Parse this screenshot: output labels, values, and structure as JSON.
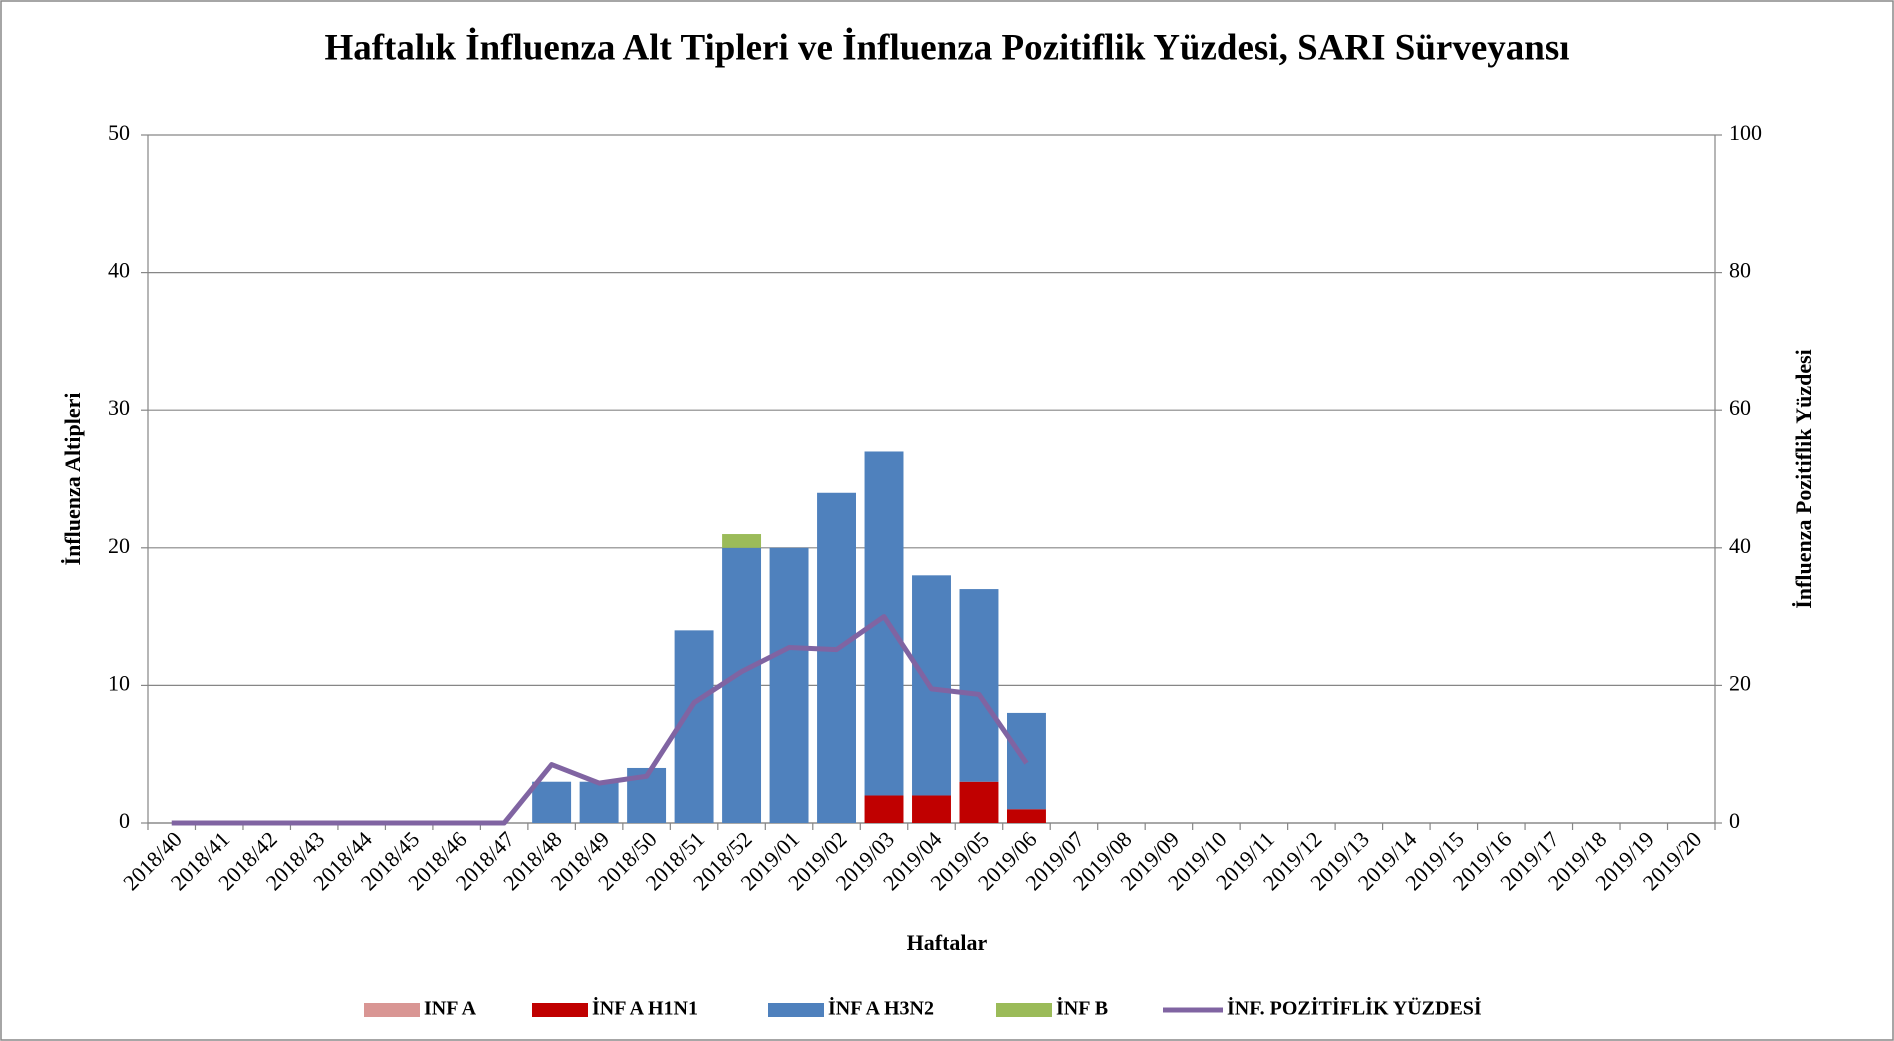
{
  "chart_data": {
    "type": "bar",
    "title": "Haftalık İnfluenza Alt Tipleri ve İnfluenza Pozitiflik Yüzdesi, SARI Sürveyansı",
    "x_label": "Haftalar",
    "y_label": "İnfluenza Altipleri",
    "y2_label": "İnfluenza Pozitiflik Yüzdesi",
    "categories": [
      "2018/40",
      "2018/41",
      "2018/42",
      "2018/43",
      "2018/44",
      "2018/45",
      "2018/46",
      "2018/47",
      "2018/48",
      "2018/49",
      "2018/50",
      "2018/51",
      "2018/52",
      "2019/01",
      "2019/02",
      "2019/03",
      "2019/04",
      "2019/05",
      "2019/06",
      "2019/07",
      "2019/08",
      "2019/09",
      "2019/10",
      "2019/11",
      "2019/12",
      "2019/13",
      "2019/14",
      "2019/15",
      "2019/16",
      "2019/17",
      "2019/18",
      "2019/19",
      "2019/20"
    ],
    "stacked": true,
    "grid": true,
    "legend": "bottom",
    "ylim": [
      0,
      50
    ],
    "yticks": [
      0,
      10,
      20,
      30,
      40,
      50
    ],
    "y2lim": [
      0,
      100
    ],
    "y2ticks": [
      0,
      20,
      40,
      60,
      80,
      100
    ],
    "series": [
      {
        "name": "INF A",
        "color": "#d99694",
        "values": [
          0,
          0,
          0,
          0,
          0,
          0,
          0,
          0,
          0,
          0,
          0,
          0,
          0,
          0,
          0,
          0,
          0,
          0,
          0,
          null,
          null,
          null,
          null,
          null,
          null,
          null,
          null,
          null,
          null,
          null,
          null,
          null,
          null
        ]
      },
      {
        "name": "İNF A H1N1",
        "color": "#c00000",
        "values": [
          0,
          0,
          0,
          0,
          0,
          0,
          0,
          0,
          0,
          0,
          0,
          0,
          0,
          0,
          0,
          2,
          2,
          3,
          1,
          null,
          null,
          null,
          null,
          null,
          null,
          null,
          null,
          null,
          null,
          null,
          null,
          null,
          null
        ]
      },
      {
        "name": "İNF A H3N2",
        "color": "#4f81bd",
        "values": [
          0,
          0,
          0,
          0,
          0,
          0,
          0,
          0,
          3,
          3,
          4,
          14,
          20,
          20,
          24,
          25,
          16,
          14,
          7,
          null,
          null,
          null,
          null,
          null,
          null,
          null,
          null,
          null,
          null,
          null,
          null,
          null,
          null
        ]
      },
      {
        "name": "İNF B",
        "color": "#9bbb59",
        "values": [
          0,
          0,
          0,
          0,
          0,
          0,
          0,
          0,
          0,
          0,
          0,
          0,
          1,
          0,
          0,
          0,
          0,
          0,
          0,
          null,
          null,
          null,
          null,
          null,
          null,
          null,
          null,
          null,
          null,
          null,
          null,
          null,
          null
        ]
      },
      {
        "name": "İNF. POZİTİFLİK YÜZDESİ",
        "color": "#8064a2",
        "type": "line",
        "axis": "y2",
        "values": [
          0,
          0,
          0,
          0,
          0,
          0,
          0,
          0,
          8.5,
          5.8,
          6.8,
          17.5,
          22,
          25.5,
          25.2,
          30,
          19.5,
          18.7,
          8.7,
          null,
          null,
          null,
          null,
          null,
          null,
          null,
          null,
          null,
          null,
          null,
          null,
          null,
          null
        ]
      }
    ]
  }
}
